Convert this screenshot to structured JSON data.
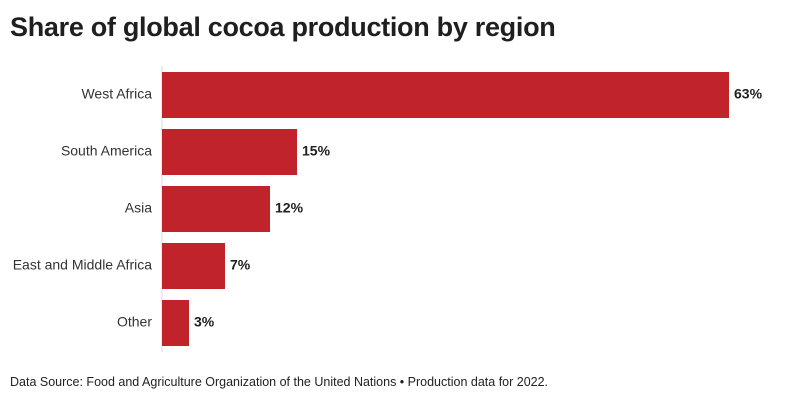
{
  "title": "Share of global cocoa production by region",
  "source_note": "Data Source: Food and Agriculture Organization of the United Nations • Production data for 2022.",
  "colors": {
    "bar": "#c0232a",
    "axis": "#d9d9d9"
  },
  "chart_data": {
    "type": "bar",
    "orientation": "horizontal",
    "categories": [
      "West Africa",
      "South America",
      "Asia",
      "East and Middle Africa",
      "Other"
    ],
    "values": [
      63,
      15,
      12,
      7,
      3
    ],
    "value_labels": [
      "63%",
      "15%",
      "12%",
      "7%",
      "3%"
    ],
    "unit": "%",
    "title": "Share of global cocoa production by region",
    "xlabel": "",
    "ylabel": "",
    "xlim": [
      0,
      63
    ],
    "grid": false,
    "legend": "none"
  }
}
